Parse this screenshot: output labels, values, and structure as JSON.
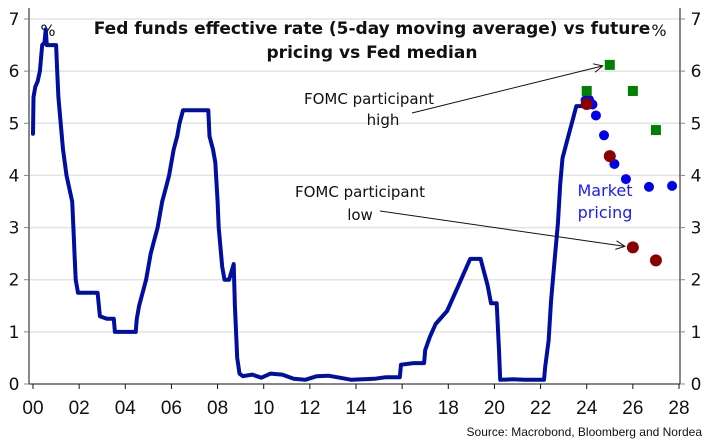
{
  "chart_data": {
    "type": "line",
    "title": "Fed funds effective rate (5-day moving average) vs future pricing vs Fed median",
    "title_lines": [
      "Fed funds effective rate (5-day moving average) vs future",
      "pricing vs Fed median"
    ],
    "ylabel_left": "%",
    "ylabel_right": "%",
    "xlabel": "",
    "xlim": [
      2000,
      2028
    ],
    "ylim": [
      0,
      7
    ],
    "grid": true,
    "x_ticks": [
      2000,
      2002,
      2004,
      2006,
      2008,
      2010,
      2012,
      2014,
      2016,
      2018,
      2020,
      2022,
      2024,
      2026,
      2028
    ],
    "x_tick_labels": [
      "00",
      "02",
      "04",
      "06",
      "08",
      "10",
      "12",
      "14",
      "16",
      "18",
      "20",
      "22",
      "24",
      "26",
      "28"
    ],
    "y_ticks": [
      0,
      1,
      2,
      3,
      4,
      5,
      6,
      7
    ],
    "y_tick_labels": [
      "0",
      "1",
      "2",
      "3",
      "4",
      "5",
      "6",
      "7"
    ],
    "series": [
      {
        "name": "Fed funds effective rate (5-day moving average)",
        "kind": "line",
        "color": "#000f9f",
        "points": [
          [
            2000.0,
            4.8
          ],
          [
            2000.02,
            5.5
          ],
          [
            2000.1,
            5.7
          ],
          [
            2000.2,
            5.8
          ],
          [
            2000.3,
            6.0
          ],
          [
            2000.4,
            6.5
          ],
          [
            2000.5,
            6.55
          ],
          [
            2000.55,
            6.8
          ],
          [
            2000.6,
            6.5
          ],
          [
            2001.0,
            6.5
          ],
          [
            2001.05,
            6.0
          ],
          [
            2001.1,
            5.5
          ],
          [
            2001.2,
            5.0
          ],
          [
            2001.3,
            4.5
          ],
          [
            2001.45,
            4.0
          ],
          [
            2001.6,
            3.7
          ],
          [
            2001.7,
            3.5
          ],
          [
            2001.75,
            3.0
          ],
          [
            2001.8,
            2.5
          ],
          [
            2001.85,
            2.0
          ],
          [
            2001.95,
            1.75
          ],
          [
            2002.2,
            1.75
          ],
          [
            2002.5,
            1.75
          ],
          [
            2002.8,
            1.75
          ],
          [
            2002.9,
            1.3
          ],
          [
            2003.2,
            1.25
          ],
          [
            2003.5,
            1.25
          ],
          [
            2003.55,
            1.0
          ],
          [
            2004.0,
            1.0
          ],
          [
            2004.45,
            1.0
          ],
          [
            2004.5,
            1.25
          ],
          [
            2004.6,
            1.5
          ],
          [
            2004.75,
            1.75
          ],
          [
            2004.9,
            2.0
          ],
          [
            2005.0,
            2.25
          ],
          [
            2005.1,
            2.5
          ],
          [
            2005.25,
            2.75
          ],
          [
            2005.4,
            3.0
          ],
          [
            2005.5,
            3.25
          ],
          [
            2005.6,
            3.5
          ],
          [
            2005.75,
            3.75
          ],
          [
            2005.9,
            4.0
          ],
          [
            2006.0,
            4.25
          ],
          [
            2006.1,
            4.5
          ],
          [
            2006.25,
            4.75
          ],
          [
            2006.35,
            5.0
          ],
          [
            2006.5,
            5.25
          ],
          [
            2007.0,
            5.25
          ],
          [
            2007.6,
            5.25
          ],
          [
            2007.65,
            4.75
          ],
          [
            2007.8,
            4.5
          ],
          [
            2007.9,
            4.25
          ],
          [
            2008.0,
            3.5
          ],
          [
            2008.05,
            3.0
          ],
          [
            2008.2,
            2.25
          ],
          [
            2008.3,
            2.0
          ],
          [
            2008.5,
            2.0
          ],
          [
            2008.7,
            2.3
          ],
          [
            2008.75,
            1.5
          ],
          [
            2008.85,
            0.5
          ],
          [
            2008.95,
            0.2
          ],
          [
            2009.1,
            0.15
          ],
          [
            2009.5,
            0.18
          ],
          [
            2009.9,
            0.12
          ],
          [
            2010.3,
            0.2
          ],
          [
            2010.8,
            0.18
          ],
          [
            2011.3,
            0.1
          ],
          [
            2011.8,
            0.08
          ],
          [
            2012.3,
            0.15
          ],
          [
            2012.8,
            0.16
          ],
          [
            2013.3,
            0.12
          ],
          [
            2013.8,
            0.08
          ],
          [
            2014.3,
            0.09
          ],
          [
            2014.8,
            0.1
          ],
          [
            2015.3,
            0.13
          ],
          [
            2015.9,
            0.13
          ],
          [
            2015.95,
            0.37
          ],
          [
            2016.5,
            0.4
          ],
          [
            2016.95,
            0.4
          ],
          [
            2017.0,
            0.65
          ],
          [
            2017.2,
            0.9
          ],
          [
            2017.45,
            1.15
          ],
          [
            2017.95,
            1.4
          ],
          [
            2018.2,
            1.65
          ],
          [
            2018.45,
            1.9
          ],
          [
            2018.7,
            2.15
          ],
          [
            2018.95,
            2.4
          ],
          [
            2019.4,
            2.4
          ],
          [
            2019.55,
            2.15
          ],
          [
            2019.7,
            1.9
          ],
          [
            2019.85,
            1.55
          ],
          [
            2020.1,
            1.55
          ],
          [
            2020.2,
            0.65
          ],
          [
            2020.25,
            0.08
          ],
          [
            2020.8,
            0.09
          ],
          [
            2021.3,
            0.08
          ],
          [
            2021.8,
            0.08
          ],
          [
            2022.15,
            0.08
          ],
          [
            2022.2,
            0.33
          ],
          [
            2022.35,
            0.83
          ],
          [
            2022.45,
            1.58
          ],
          [
            2022.6,
            2.33
          ],
          [
            2022.75,
            3.08
          ],
          [
            2022.85,
            3.83
          ],
          [
            2022.95,
            4.33
          ],
          [
            2023.1,
            4.58
          ],
          [
            2023.25,
            4.83
          ],
          [
            2023.4,
            5.08
          ],
          [
            2023.55,
            5.33
          ],
          [
            2023.8,
            5.33
          ],
          [
            2023.95,
            5.33
          ]
        ]
      },
      {
        "name": "Market pricing",
        "kind": "scatter",
        "marker": "circle",
        "color": "#0000ee",
        "points": [
          [
            2023.95,
            5.44
          ],
          [
            2024.1,
            5.45
          ],
          [
            2024.25,
            5.36
          ],
          [
            2024.4,
            5.15
          ],
          [
            2024.75,
            4.77
          ],
          [
            2025.2,
            4.22
          ],
          [
            2025.7,
            3.93
          ],
          [
            2026.7,
            3.78
          ],
          [
            2027.7,
            3.8
          ]
        ]
      },
      {
        "name": "FOMC participant high",
        "kind": "scatter",
        "marker": "square",
        "color": "#008000",
        "points": [
          [
            2024.0,
            5.62
          ],
          [
            2025.0,
            6.12
          ],
          [
            2026.0,
            5.62
          ],
          [
            2027.0,
            4.87
          ]
        ]
      },
      {
        "name": "Fed median",
        "kind": "scatter",
        "marker": "circle",
        "color": "#8b0000",
        "points": [
          [
            2024.0,
            5.37
          ],
          [
            2025.0,
            4.37
          ],
          [
            2026.0,
            2.62
          ],
          [
            2027.0,
            2.37
          ]
        ]
      }
    ],
    "annotations": [
      {
        "text_lines": [
          "FOMC participant",
          "high"
        ],
        "points_to_series": "FOMC participant high",
        "points_to": [
          2025.0,
          6.12
        ]
      },
      {
        "text_lines": [
          "FOMC participant",
          "low"
        ],
        "points_to_series": "Fed median",
        "points_to": [
          2026.0,
          2.62
        ]
      },
      {
        "text_lines": [
          "Market",
          "pricing"
        ],
        "color": "#0000ee"
      }
    ],
    "source": "Source: Macrobond, Bloomberg and Nordea"
  }
}
